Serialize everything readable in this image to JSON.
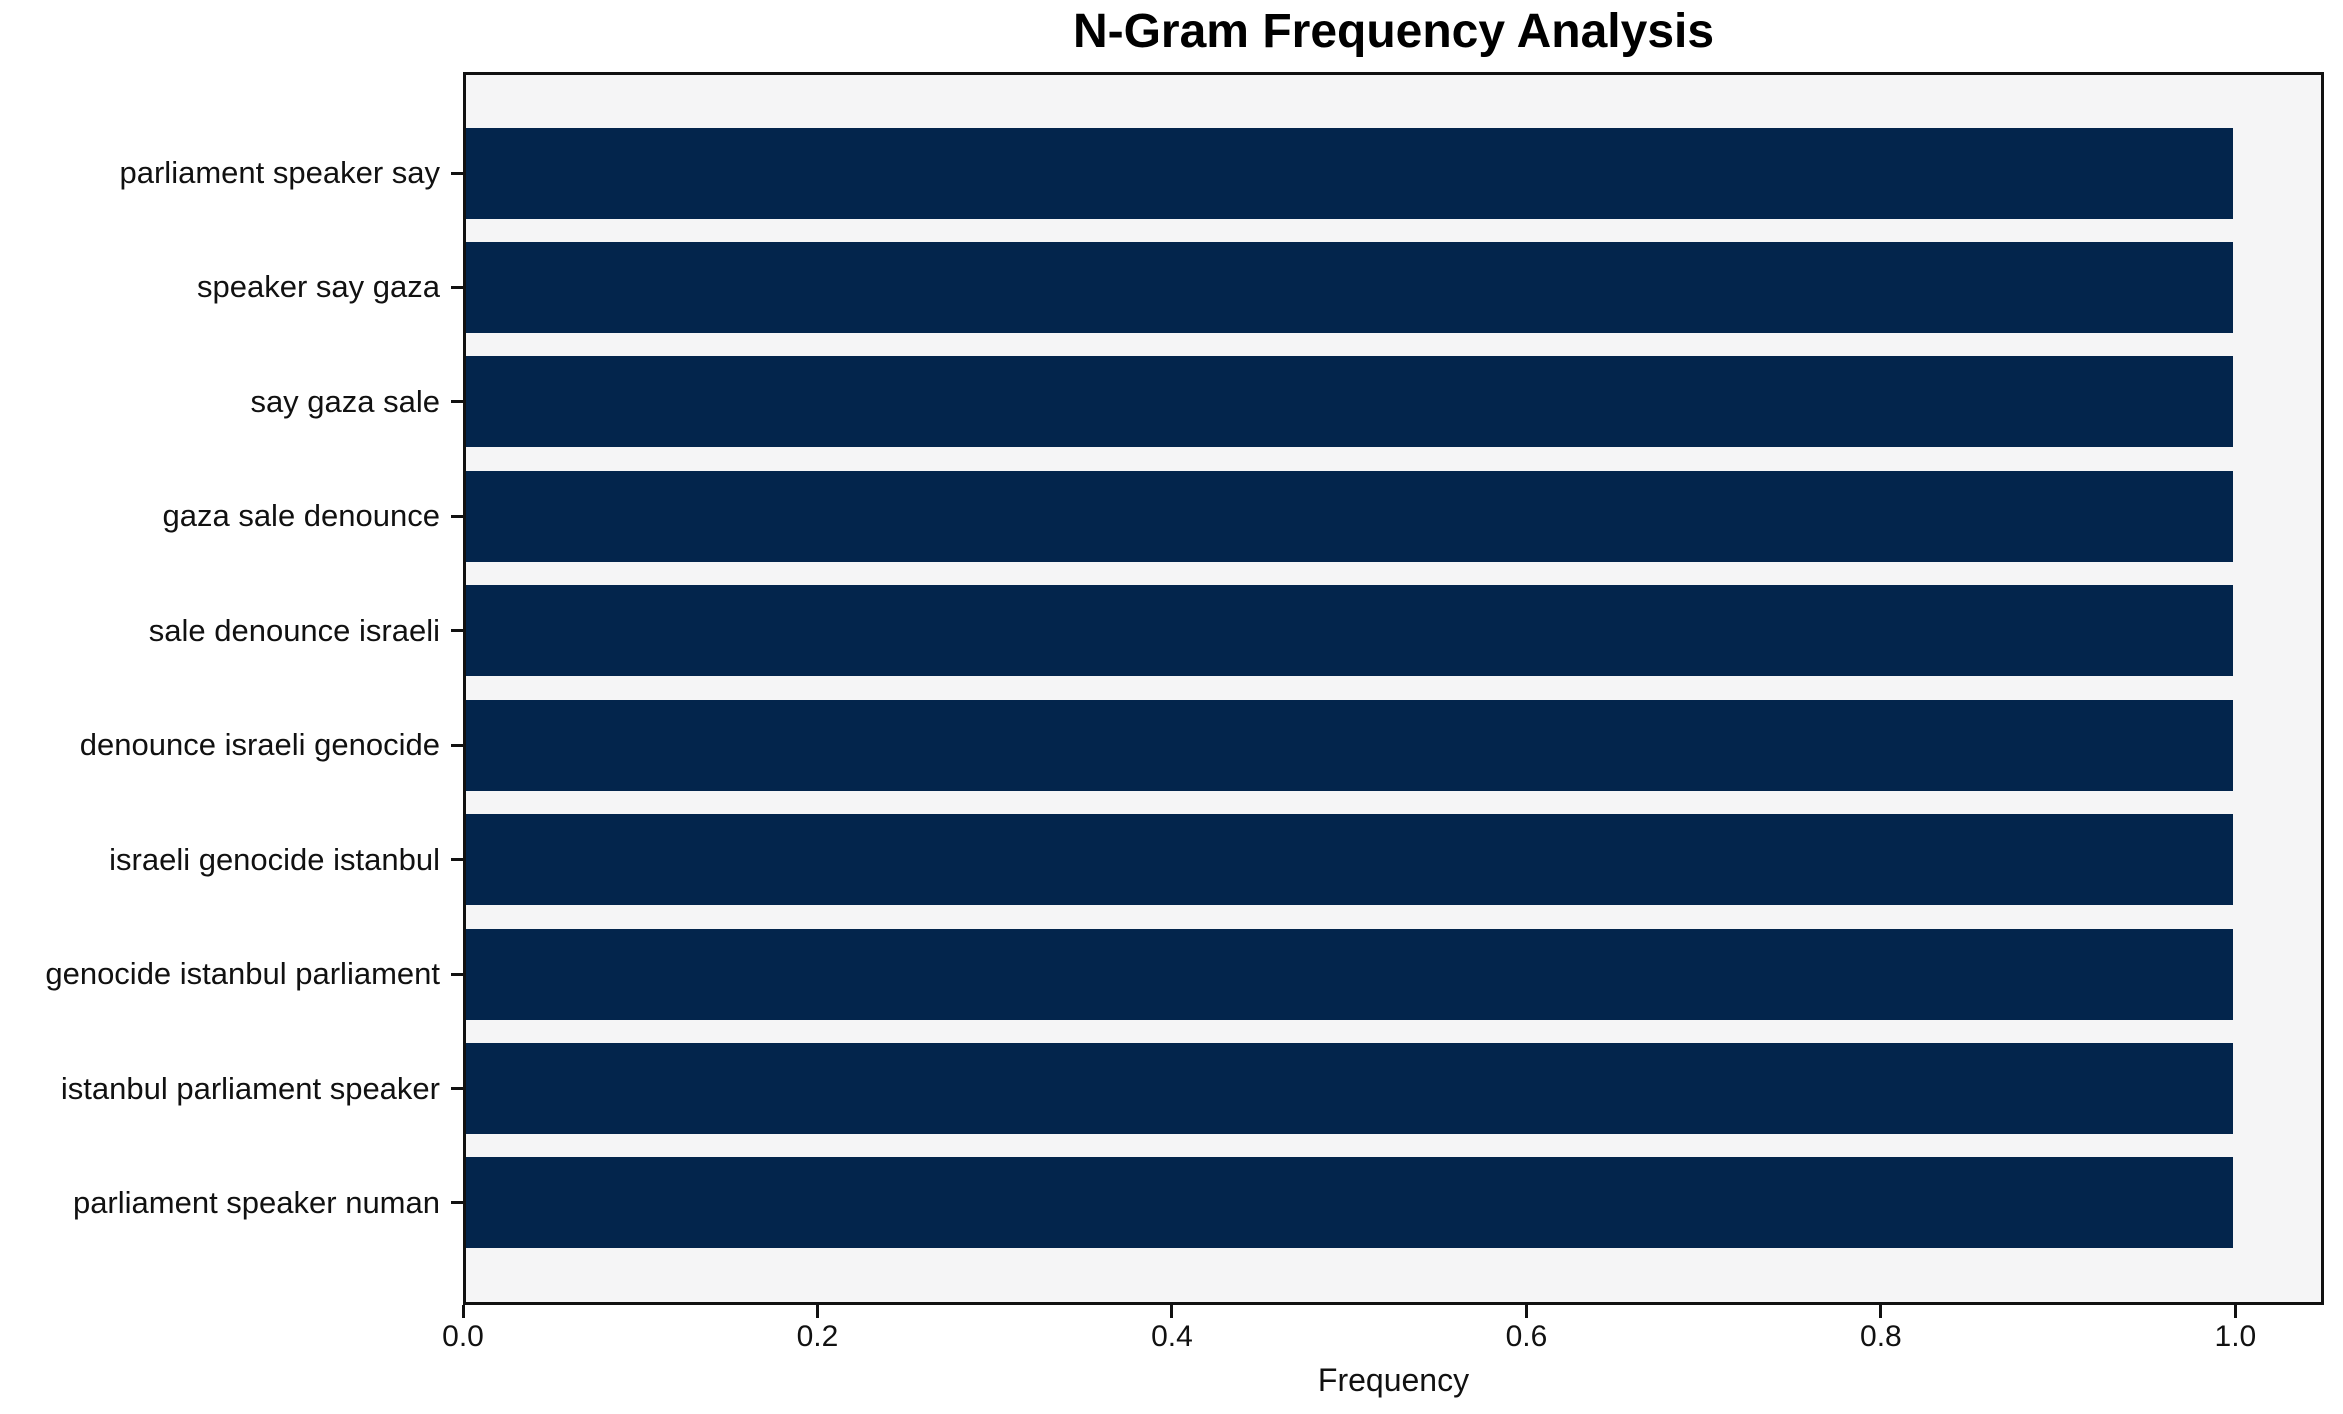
{
  "chart_data": {
    "type": "bar",
    "orientation": "horizontal",
    "title": "N-Gram Frequency Analysis",
    "xlabel": "Frequency",
    "ylabel": "",
    "categories": [
      "parliament speaker say",
      "speaker say gaza",
      "say gaza sale",
      "gaza sale denounce",
      "sale denounce israeli",
      "denounce israeli genocide",
      "israeli genocide istanbul",
      "genocide istanbul parliament",
      "istanbul parliament speaker",
      "parliament speaker numan"
    ],
    "values": [
      1.0,
      1.0,
      1.0,
      1.0,
      1.0,
      1.0,
      1.0,
      1.0,
      1.0,
      1.0
    ],
    "xlim": [
      0.0,
      1.05
    ],
    "xticks": [
      0.0,
      0.2,
      0.4,
      0.6,
      0.8,
      1.0
    ],
    "xtick_labels": [
      "0.0",
      "0.2",
      "0.4",
      "0.6",
      "0.8",
      "1.0"
    ],
    "grid": false,
    "legend": null,
    "colors": {
      "bar": "#03254c",
      "plot_background": "#f5f5f6",
      "figure_background": "#ffffff",
      "axis": "#111111",
      "text": "#111111"
    }
  }
}
